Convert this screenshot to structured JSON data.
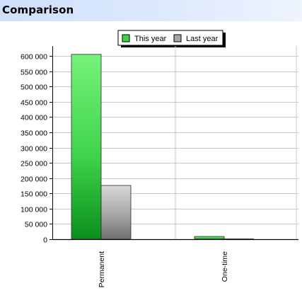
{
  "panel": {
    "title": "Comparison"
  },
  "colors": {
    "header_light": "#eef4fe",
    "header_dark": "#cfe0fb",
    "this_year": "#3fd34a",
    "last_year": "#a6a6a6",
    "grid": "#c8c8c8"
  },
  "chart_data": {
    "type": "bar",
    "title": "",
    "xlabel": "",
    "ylabel": "",
    "categories": [
      "Permanent",
      "One-time"
    ],
    "series": [
      {
        "name": "This year",
        "values": [
          605000,
          9000
        ],
        "color": "#3fd34a"
      },
      {
        "name": "Last year",
        "values": [
          176000,
          0
        ],
        "color": "#a6a6a6"
      }
    ],
    "ylim": [
      0,
      600000
    ],
    "yticks": [
      0,
      50000,
      100000,
      150000,
      200000,
      250000,
      300000,
      350000,
      400000,
      450000,
      500000,
      550000,
      600000
    ],
    "ytick_labels": [
      "0",
      "50 000",
      "100 000",
      "150 000",
      "200 000",
      "250 000",
      "300 000",
      "350 000",
      "400 000",
      "450 000",
      "500 000",
      "550 000",
      "600 000"
    ],
    "grid": true,
    "legend_position": "top-center"
  }
}
